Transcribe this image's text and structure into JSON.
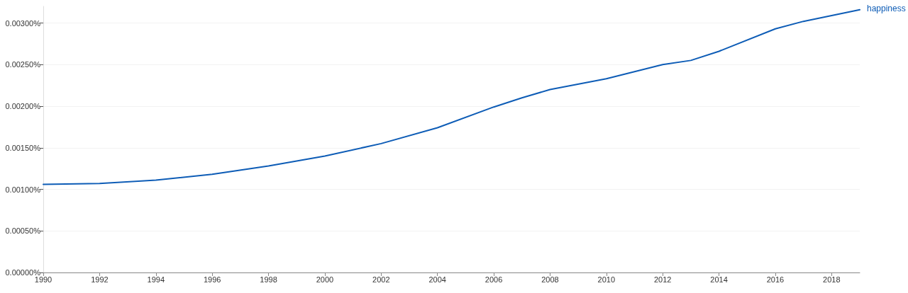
{
  "chart_data": {
    "type": "line",
    "x": [
      1990,
      1992,
      1994,
      1996,
      1998,
      2000,
      2002,
      2004,
      2006,
      2007,
      2008,
      2010,
      2012,
      2013,
      2014,
      2016,
      2017,
      2018,
      2019
    ],
    "series": [
      {
        "name": "happiness",
        "color": "#0d5cb6",
        "values": [
          0.00106,
          0.00107,
          0.00111,
          0.00118,
          0.00128,
          0.0014,
          0.00155,
          0.00174,
          0.00199,
          0.0021,
          0.0022,
          0.00233,
          0.0025,
          0.00255,
          0.00266,
          0.00293,
          0.00302,
          0.00309,
          0.00316
        ]
      }
    ],
    "xlim": [
      1990,
      2019
    ],
    "xticks": [
      1990,
      1992,
      1994,
      1996,
      1998,
      2000,
      2002,
      2004,
      2006,
      2008,
      2010,
      2012,
      2014,
      2016,
      2018
    ],
    "ylim": [
      0,
      0.0032
    ],
    "yticks": [
      {
        "value": 0,
        "label": "0.00000%"
      },
      {
        "value": 0.0005,
        "label": "0.00050%"
      },
      {
        "value": 0.001,
        "label": "0.00100%"
      },
      {
        "value": 0.0015,
        "label": "0.00150%"
      },
      {
        "value": 0.002,
        "label": "0.00200%"
      },
      {
        "value": 0.0025,
        "label": "0.00250%"
      },
      {
        "value": 0.003,
        "label": "0.00300%"
      }
    ],
    "grid": "y",
    "legend": false,
    "marker": "none",
    "line_style": "solid"
  }
}
